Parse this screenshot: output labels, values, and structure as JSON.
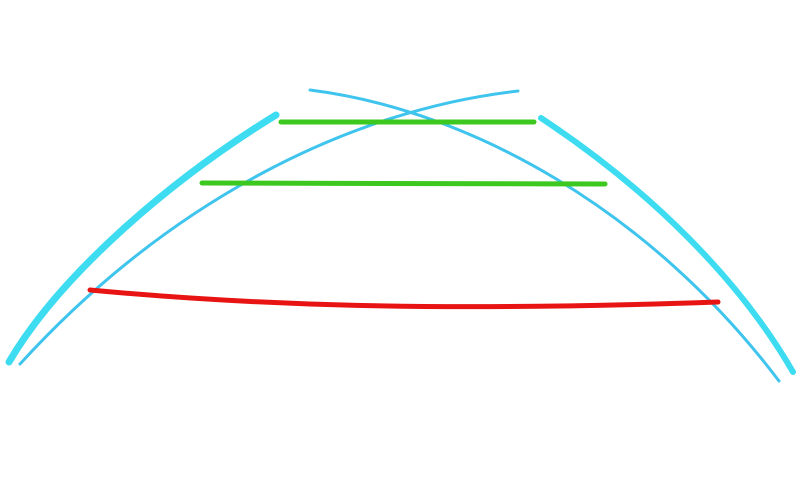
{
  "background_color": "#ffffff",
  "guide_colors": {
    "outer_boundary": "#3ddcf0",
    "trajectory": "#3fc4ee",
    "far_distance": "#3cc81e",
    "mid_distance": "#3cc81e",
    "near_distance": "#e81414"
  },
  "guides": {
    "outer_left": {
      "kind": "outer boundary",
      "side": "left"
    },
    "outer_right": {
      "kind": "outer boundary",
      "side": "right"
    },
    "trajectory_left": {
      "kind": "trajectory",
      "side": "left"
    },
    "trajectory_right": {
      "kind": "trajectory",
      "side": "right"
    },
    "distance_far": {
      "kind": "distance marker",
      "zone": "far"
    },
    "distance_mid": {
      "kind": "distance marker",
      "zone": "mid"
    },
    "distance_near": {
      "kind": "distance marker",
      "zone": "near"
    }
  }
}
